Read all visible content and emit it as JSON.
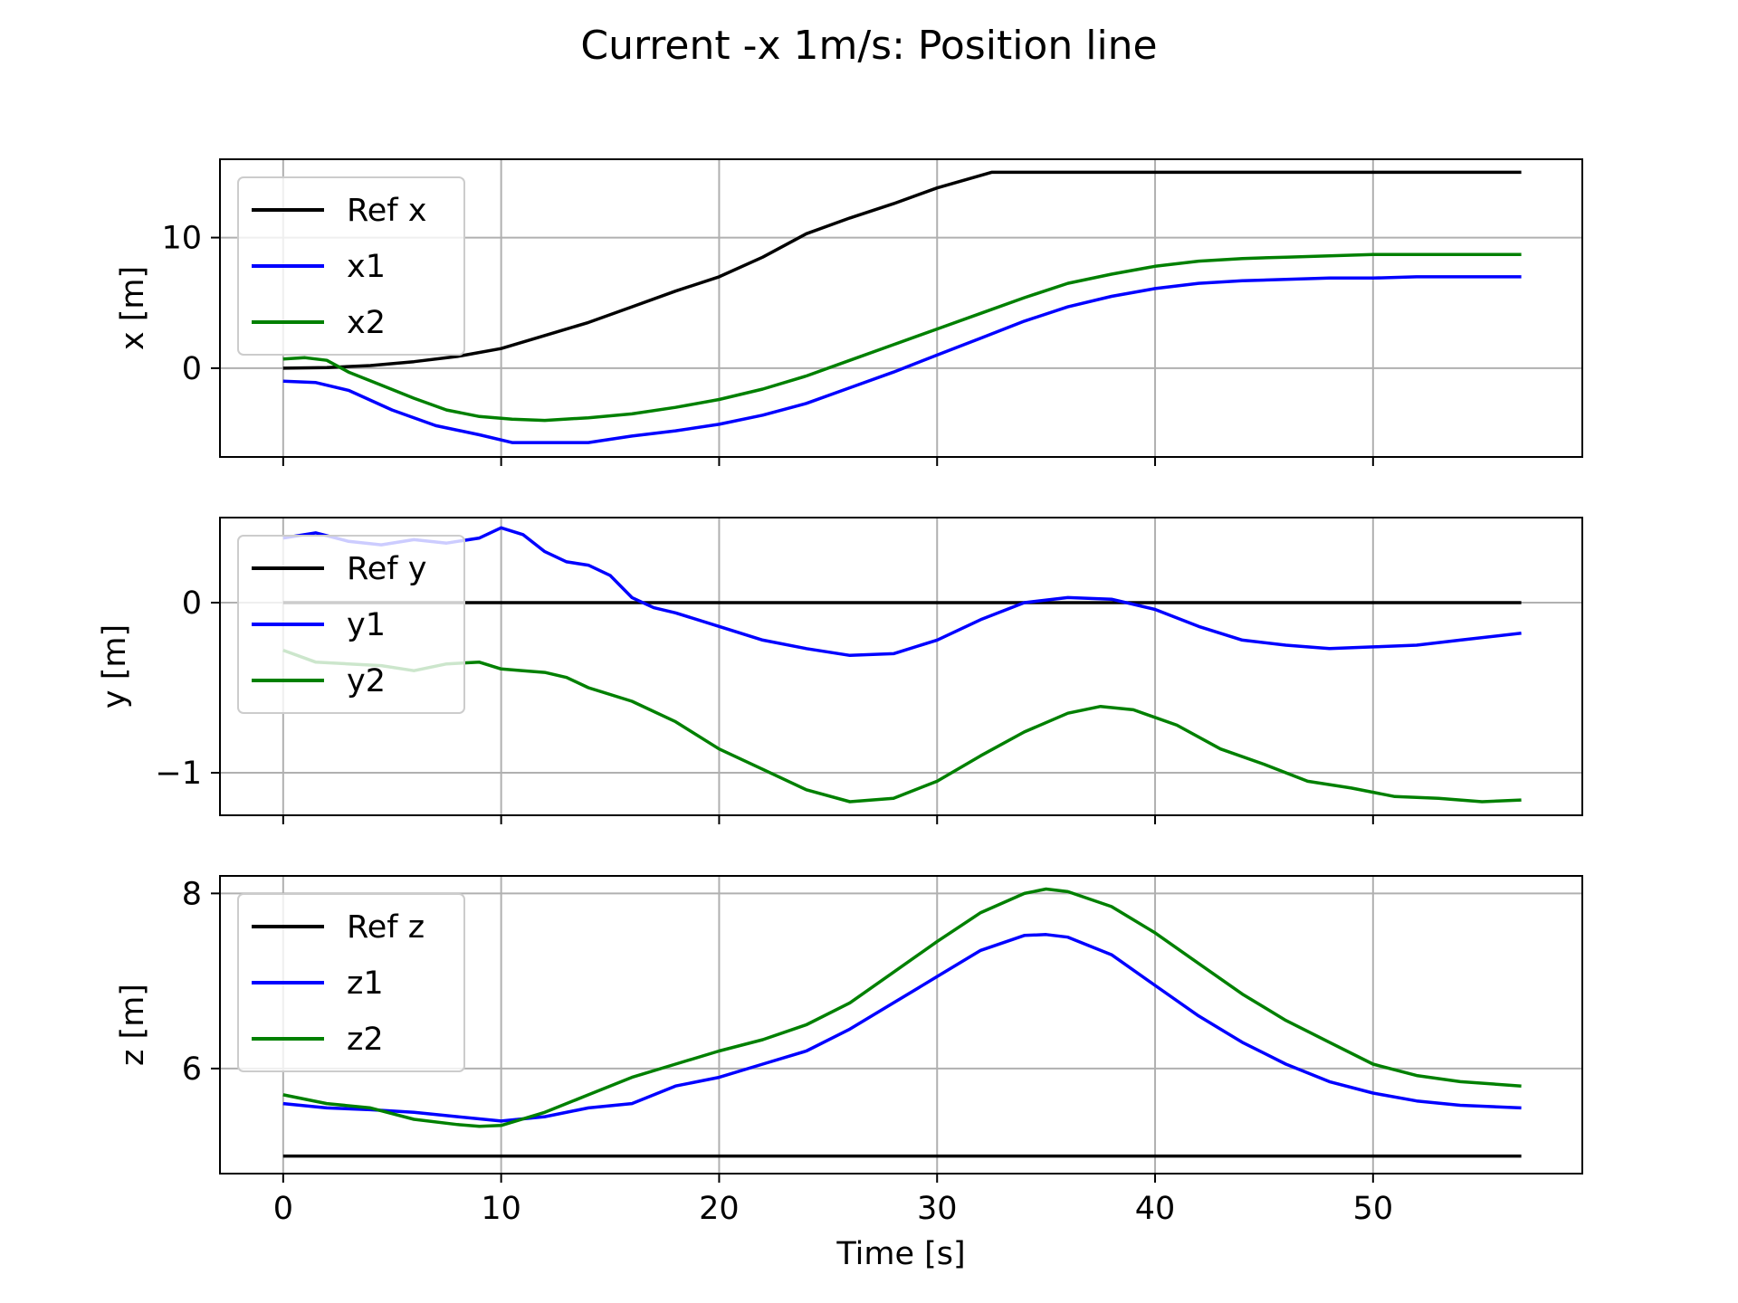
{
  "figure": {
    "title": "Current -x 1m/s: Position line"
  },
  "colors": {
    "ref": "#000000",
    "series1": "#0000ff",
    "series2": "#008000",
    "grid": "#b0b0b0"
  },
  "chart_data": [
    {
      "type": "line",
      "ylabel": "x [m]",
      "xlim": [
        -2.9,
        59.6
      ],
      "ylim": [
        -6.8,
        16.0
      ],
      "xticks": [
        0,
        10,
        20,
        30,
        40,
        50
      ],
      "yticks": [
        0,
        10
      ],
      "ytick_labels": [
        "0",
        "10"
      ],
      "grid": true,
      "legend": "upper left",
      "series": [
        {
          "name": "Ref x",
          "color": "#000000",
          "x": [
            0,
            2,
            4,
            6,
            8,
            10,
            12,
            14,
            16,
            18,
            20,
            22,
            24,
            26,
            28,
            30,
            32.5,
            40,
            50,
            56.8
          ],
          "y": [
            0,
            0.05,
            0.2,
            0.5,
            0.9,
            1.5,
            2.5,
            3.5,
            4.7,
            5.9,
            7.0,
            8.5,
            10.3,
            11.5,
            12.6,
            13.8,
            15.0,
            15.0,
            15.0,
            15.0
          ]
        },
        {
          "name": "x1",
          "color": "#0000ff",
          "x": [
            0,
            1.5,
            3,
            5,
            7,
            9,
            10.5,
            12,
            14,
            16,
            18,
            20,
            22,
            24,
            26,
            28,
            30,
            32,
            34,
            36,
            38,
            40,
            42,
            44,
            46,
            48,
            50,
            52,
            54,
            56.8
          ],
          "y": [
            -1.0,
            -1.1,
            -1.7,
            -3.2,
            -4.4,
            -5.1,
            -5.7,
            -5.7,
            -5.7,
            -5.2,
            -4.8,
            -4.3,
            -3.6,
            -2.7,
            -1.5,
            -0.3,
            1.0,
            2.3,
            3.6,
            4.7,
            5.5,
            6.1,
            6.5,
            6.7,
            6.8,
            6.9,
            6.9,
            7.0,
            7.0,
            7.0
          ]
        },
        {
          "name": "x2",
          "color": "#008000",
          "x": [
            0,
            1,
            2,
            3,
            4.5,
            6,
            7.5,
            9,
            10.5,
            12,
            14,
            16,
            18,
            20,
            22,
            24,
            26,
            28,
            30,
            32,
            34,
            36,
            38,
            40,
            42,
            44,
            46,
            48,
            50,
            52,
            54,
            56.8
          ],
          "y": [
            0.7,
            0.8,
            0.6,
            -0.3,
            -1.3,
            -2.3,
            -3.2,
            -3.7,
            -3.9,
            -4.0,
            -3.8,
            -3.5,
            -3.0,
            -2.4,
            -1.6,
            -0.6,
            0.6,
            1.8,
            3.0,
            4.2,
            5.4,
            6.5,
            7.2,
            7.8,
            8.2,
            8.4,
            8.5,
            8.6,
            8.7,
            8.7,
            8.7,
            8.7
          ]
        }
      ]
    },
    {
      "type": "line",
      "ylabel": "y [m]",
      "xlim": [
        -2.9,
        59.6
      ],
      "ylim": [
        -1.25,
        0.5
      ],
      "xticks": [
        0,
        10,
        20,
        30,
        40,
        50
      ],
      "yticks": [
        0,
        -1
      ],
      "ytick_labels": [
        "0",
        "−1"
      ],
      "grid": true,
      "legend": "upper left",
      "series": [
        {
          "name": "Ref y",
          "color": "#000000",
          "x": [
            0,
            56.8
          ],
          "y": [
            0,
            0
          ]
        },
        {
          "name": "y1",
          "color": "#0000ff",
          "x": [
            0,
            1.5,
            3,
            4.5,
            6,
            7.5,
            9,
            10,
            11,
            12,
            13,
            14,
            15,
            16,
            17,
            18,
            20,
            22,
            24,
            26,
            28,
            30,
            32,
            34,
            36,
            38,
            40,
            42,
            44,
            46,
            48,
            50,
            52,
            54,
            56.8
          ],
          "y": [
            0.38,
            0.41,
            0.36,
            0.34,
            0.37,
            0.35,
            0.38,
            0.44,
            0.4,
            0.3,
            0.24,
            0.22,
            0.16,
            0.03,
            -0.03,
            -0.06,
            -0.14,
            -0.22,
            -0.27,
            -0.31,
            -0.3,
            -0.22,
            -0.1,
            0.0,
            0.03,
            0.02,
            -0.04,
            -0.14,
            -0.22,
            -0.25,
            -0.27,
            -0.26,
            -0.25,
            -0.22,
            -0.18
          ]
        },
        {
          "name": "y2",
          "color": "#008000",
          "x": [
            0,
            1.5,
            3,
            4.5,
            6,
            7.5,
            9,
            10,
            11,
            12,
            13,
            14,
            16,
            18,
            20,
            22,
            24,
            26,
            28,
            30,
            32,
            34,
            36,
            37.5,
            39,
            41,
            43,
            45,
            47,
            49,
            51,
            53,
            55,
            56.8
          ],
          "y": [
            -0.28,
            -0.35,
            -0.36,
            -0.37,
            -0.4,
            -0.36,
            -0.35,
            -0.39,
            -0.4,
            -0.41,
            -0.44,
            -0.5,
            -0.58,
            -0.7,
            -0.86,
            -0.98,
            -1.1,
            -1.17,
            -1.15,
            -1.05,
            -0.9,
            -0.76,
            -0.65,
            -0.61,
            -0.63,
            -0.72,
            -0.86,
            -0.95,
            -1.05,
            -1.09,
            -1.14,
            -1.15,
            -1.17,
            -1.16
          ]
        }
      ]
    },
    {
      "type": "line",
      "ylabel": "z [m]",
      "xlabel": "Time [s]",
      "xlim": [
        -2.9,
        59.6
      ],
      "ylim": [
        4.8,
        8.2
      ],
      "xticks": [
        0,
        10,
        20,
        30,
        40,
        50
      ],
      "xtick_labels": [
        "0",
        "10",
        "20",
        "30",
        "40",
        "50"
      ],
      "yticks": [
        6,
        8
      ],
      "ytick_labels": [
        "6",
        "8"
      ],
      "grid": true,
      "legend": "upper left",
      "series": [
        {
          "name": "Ref z",
          "color": "#000000",
          "x": [
            0,
            56.8
          ],
          "y": [
            5.0,
            5.0
          ]
        },
        {
          "name": "z1",
          "color": "#0000ff",
          "x": [
            0,
            2,
            4,
            6,
            8,
            10,
            12,
            14,
            16,
            18,
            20,
            22,
            24,
            26,
            28,
            30,
            32,
            34,
            35,
            36,
            38,
            40,
            42,
            44,
            46,
            48,
            50,
            52,
            54,
            56.8
          ],
          "y": [
            5.6,
            5.55,
            5.53,
            5.5,
            5.45,
            5.4,
            5.45,
            5.55,
            5.6,
            5.8,
            5.9,
            6.05,
            6.2,
            6.45,
            6.75,
            7.05,
            7.35,
            7.52,
            7.53,
            7.5,
            7.3,
            6.95,
            6.6,
            6.3,
            6.05,
            5.85,
            5.72,
            5.63,
            5.58,
            5.55
          ]
        },
        {
          "name": "z2",
          "color": "#008000",
          "x": [
            0,
            2,
            4,
            6,
            8,
            9,
            10,
            12,
            14,
            16,
            18,
            20,
            22,
            24,
            26,
            28,
            30,
            32,
            34,
            35,
            36,
            38,
            40,
            42,
            44,
            46,
            48,
            50,
            52,
            54,
            56.8
          ],
          "y": [
            5.7,
            5.6,
            5.55,
            5.42,
            5.36,
            5.34,
            5.35,
            5.5,
            5.7,
            5.9,
            6.05,
            6.2,
            6.33,
            6.5,
            6.75,
            7.1,
            7.45,
            7.78,
            8.0,
            8.05,
            8.02,
            7.85,
            7.55,
            7.2,
            6.85,
            6.55,
            6.3,
            6.05,
            5.92,
            5.85,
            5.8
          ]
        }
      ]
    }
  ]
}
